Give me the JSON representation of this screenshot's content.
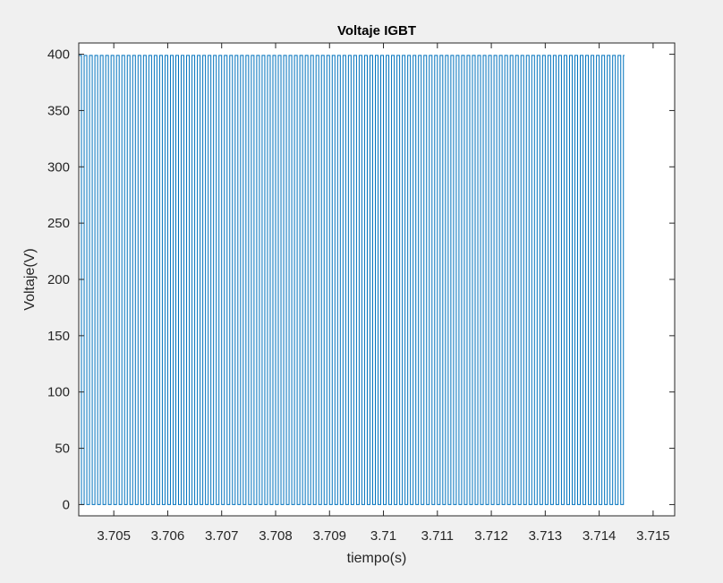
{
  "chart_data": {
    "type": "line",
    "title": "Voltaje IGBT",
    "xlabel": "tiempo(s)",
    "ylabel": "Voltaje(V)",
    "xlim": [
      3.70435,
      3.7154
    ],
    "ylim": [
      -10,
      410
    ],
    "x_ticks": [
      3.705,
      3.706,
      3.707,
      3.708,
      3.709,
      3.71,
      3.711,
      3.712,
      3.713,
      3.714,
      3.715
    ],
    "x_tick_labels": [
      "3.705",
      "3.706",
      "3.707",
      "3.708",
      "3.709",
      "3.71",
      "3.711",
      "3.712",
      "3.713",
      "3.714",
      "3.715"
    ],
    "y_ticks": [
      0,
      50,
      100,
      150,
      200,
      250,
      300,
      350,
      400
    ],
    "y_tick_labels": [
      "0",
      "50",
      "100",
      "150",
      "200",
      "250",
      "300",
      "350",
      "400"
    ],
    "grid": false,
    "series_color": "#0072bd",
    "signal": {
      "waveform": "square-pwm",
      "x_start": 3.70435,
      "x_end": 3.71447,
      "high_level": 399,
      "low_level": 0,
      "period": 0.0001,
      "duty_cycle": 0.5
    }
  }
}
